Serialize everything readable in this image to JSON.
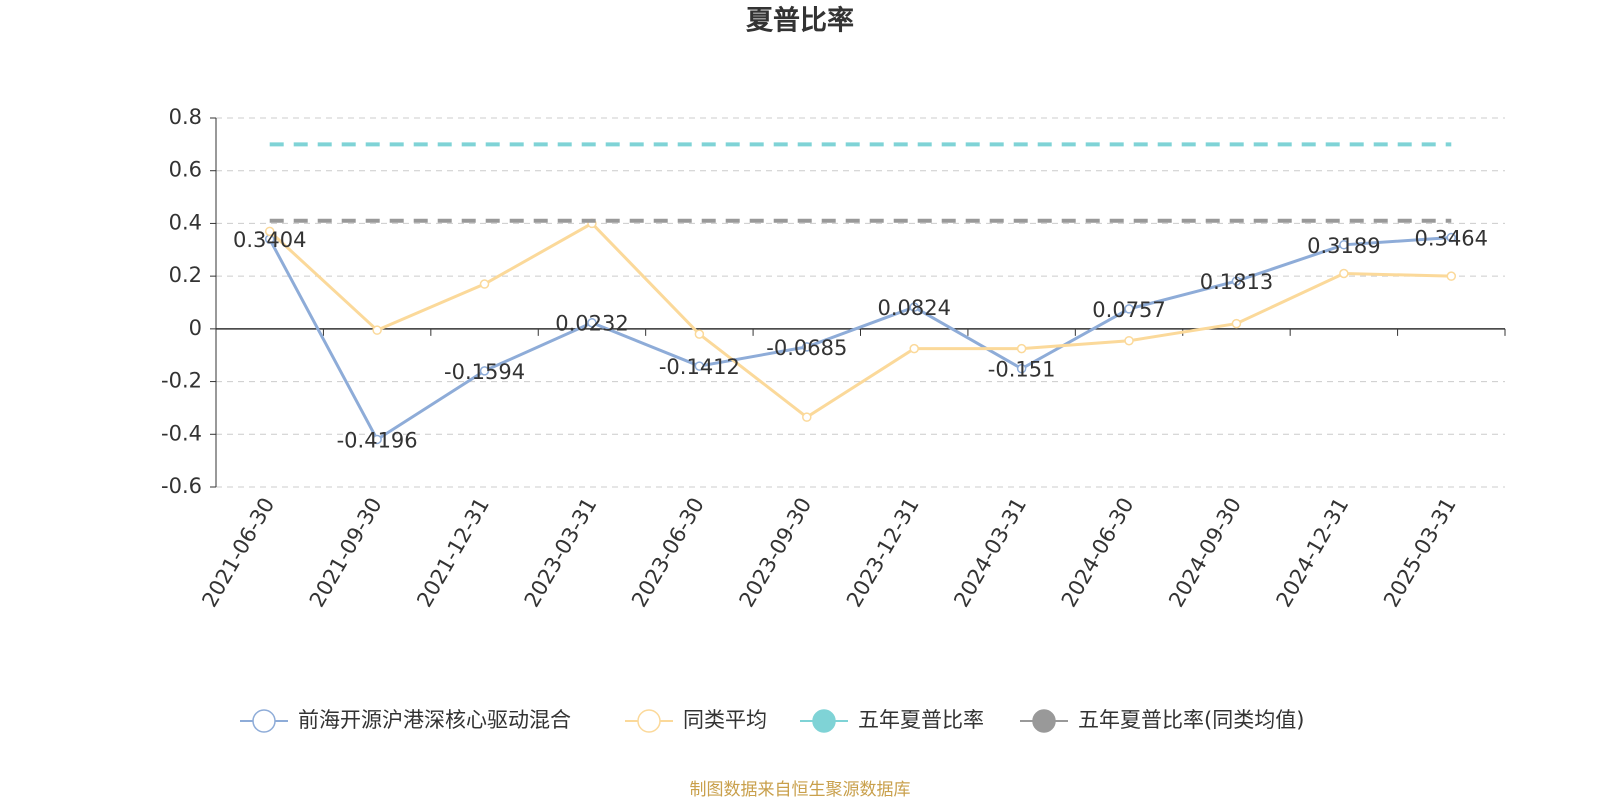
{
  "chart_data": {
    "type": "line",
    "title": "夏普比率",
    "categories": [
      "2021-06-30",
      "2021-09-30",
      "2021-12-31",
      "2023-03-31",
      "2023-06-30",
      "2023-09-30",
      "2023-12-31",
      "2024-03-31",
      "2024-06-30",
      "2024-09-30",
      "2024-12-31",
      "2025-03-31"
    ],
    "series": [
      {
        "name": "前海开源沪港深核心驱动混合",
        "color": "#8eacd8",
        "labels": true,
        "values": [
          0.3404,
          -0.4196,
          -0.1594,
          0.0232,
          -0.1412,
          -0.0685,
          0.0824,
          -0.151,
          0.0757,
          0.1813,
          0.3189,
          0.3464
        ]
      },
      {
        "name": "同类平均",
        "color": "#fbd99a",
        "values": [
          0.37,
          -0.005,
          0.17,
          0.4,
          -0.02,
          -0.335,
          -0.075,
          -0.075,
          -0.045,
          0.02,
          0.21,
          0.2
        ]
      },
      {
        "name": "五年夏普比率",
        "color": "#7fd3d6",
        "dashed": true,
        "values": [
          0.7,
          0.7,
          0.7,
          0.7,
          0.7,
          0.7,
          0.7,
          0.7,
          0.7,
          0.7,
          0.7,
          0.7
        ]
      },
      {
        "name": "五年夏普比率(同类均值)",
        "color": "#999999",
        "dashed": true,
        "values": [
          0.41,
          0.41,
          0.41,
          0.41,
          0.41,
          0.41,
          0.41,
          0.41,
          0.41,
          0.41,
          0.41,
          0.41
        ]
      }
    ],
    "ylim": [
      -0.6,
      0.8
    ],
    "yticks": [
      -0.6,
      -0.4,
      -0.2,
      0,
      0.2,
      0.4,
      0.6,
      0.8
    ],
    "grid": true,
    "source": "制图数据来自恒生聚源数据库"
  }
}
